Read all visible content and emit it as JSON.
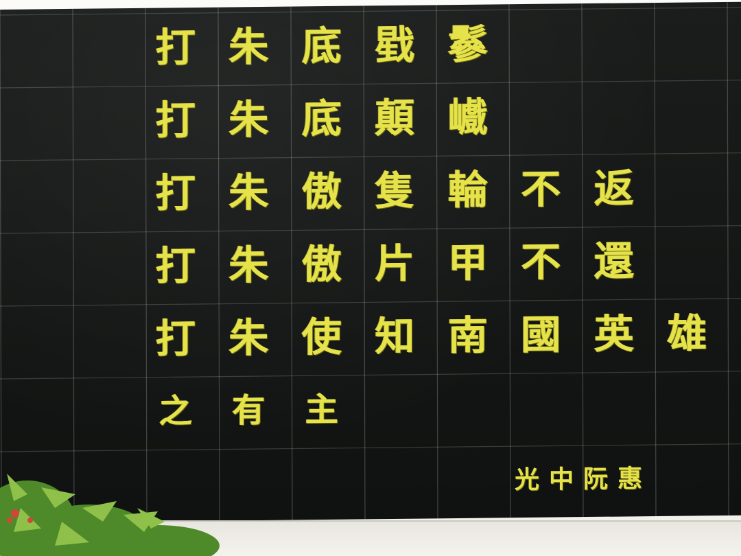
{
  "inscription": {
    "rows": [
      [
        "打",
        "朱",
        "底",
        "戥",
        "鬖"
      ],
      [
        "打",
        "朱",
        "底",
        "顛",
        "巇"
      ],
      [
        "打",
        "朱",
        "傲",
        "隻",
        "輪",
        "不",
        "返"
      ],
      [
        "打",
        "朱",
        "傲",
        "片",
        "甲",
        "不",
        "還"
      ],
      [
        "打",
        "朱",
        "使",
        "知",
        "南",
        "國",
        "英",
        "雄"
      ],
      [
        "之",
        "有",
        "主"
      ]
    ],
    "signature": "光中阮惠"
  },
  "colors": {
    "wall": "#151716",
    "text": "#e6e24a"
  }
}
